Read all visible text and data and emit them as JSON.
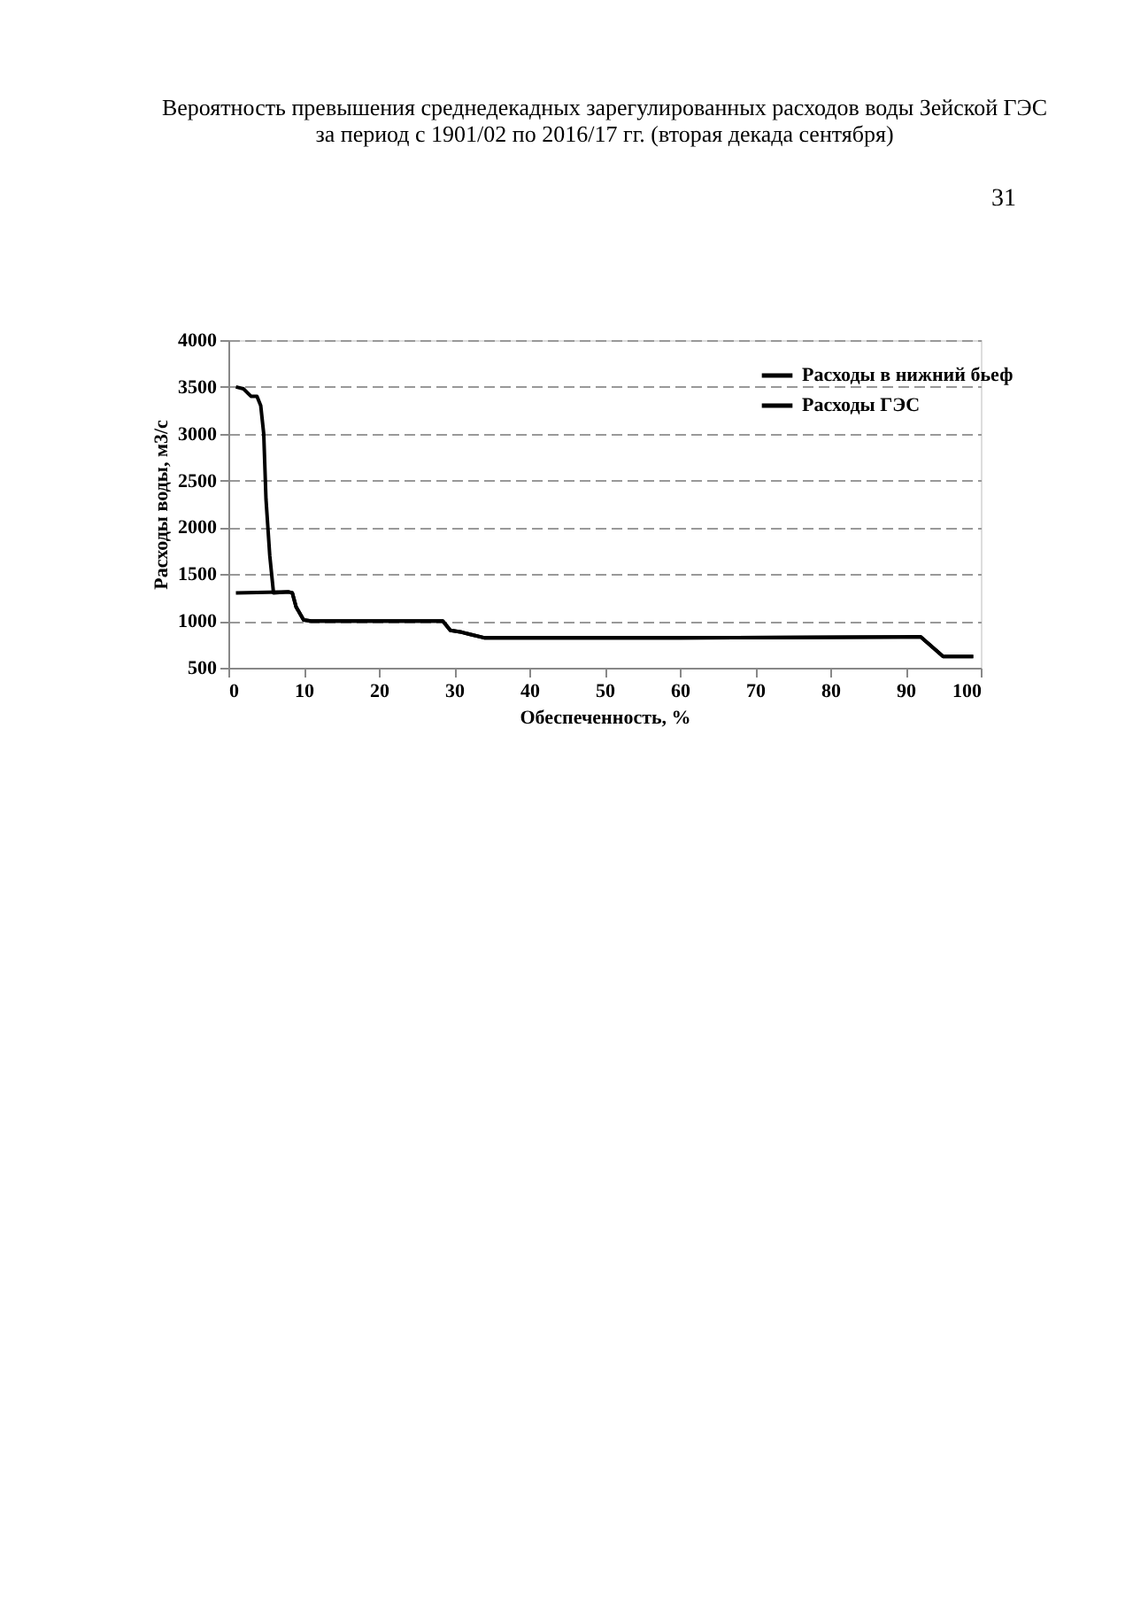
{
  "chart_data": {
    "type": "line",
    "title": [
      "Вероятность превышения среднедекадных зарегулированных расходов воды Зейской ГЭС",
      "за период с 1901/02 по 2016/17 гг. (вторая декада сентября)"
    ],
    "xlabel": "Обеспеченность, %",
    "ylabel": "Расходы воды, м3/с",
    "annotations": [
      "31"
    ],
    "series": [
      {
        "name": "Расходы в нижний бьеф",
        "color": "#000000",
        "x": [
          1,
          2,
          3,
          3.8,
          4.3,
          4.7,
          5,
          5.5,
          6,
          8,
          8.5,
          9,
          10,
          11,
          28.5,
          29.5,
          31,
          32,
          34,
          60,
          92,
          95,
          99
        ],
        "values": [
          3500,
          3480,
          3400,
          3400,
          3300,
          3000,
          2300,
          1700,
          1300,
          1310,
          1300,
          1150,
          1010,
          1000,
          1000,
          900,
          880,
          860,
          820,
          820,
          830,
          620,
          620
        ]
      },
      {
        "name": "Расходы ГЭС",
        "color": "#000000",
        "x": [
          1,
          8,
          8.5,
          9,
          10,
          11,
          28.5,
          29.5,
          31,
          32,
          34,
          60,
          92,
          95,
          99
        ],
        "values": [
          1300,
          1310,
          1300,
          1150,
          1010,
          1000,
          1000,
          900,
          880,
          860,
          820,
          820,
          830,
          620,
          620
        ]
      }
    ],
    "xlim": [
      0,
      100
    ],
    "xticks": [
      0,
      10,
      20,
      30,
      40,
      50,
      60,
      70,
      80,
      90,
      100
    ],
    "ylim": [
      500,
      4000
    ],
    "yticks": [
      500,
      1000,
      1500,
      2000,
      2500,
      3000,
      3500,
      4000
    ],
    "grid": "y",
    "legend": "top right",
    "line_style": "solid",
    "marker": "none"
  }
}
